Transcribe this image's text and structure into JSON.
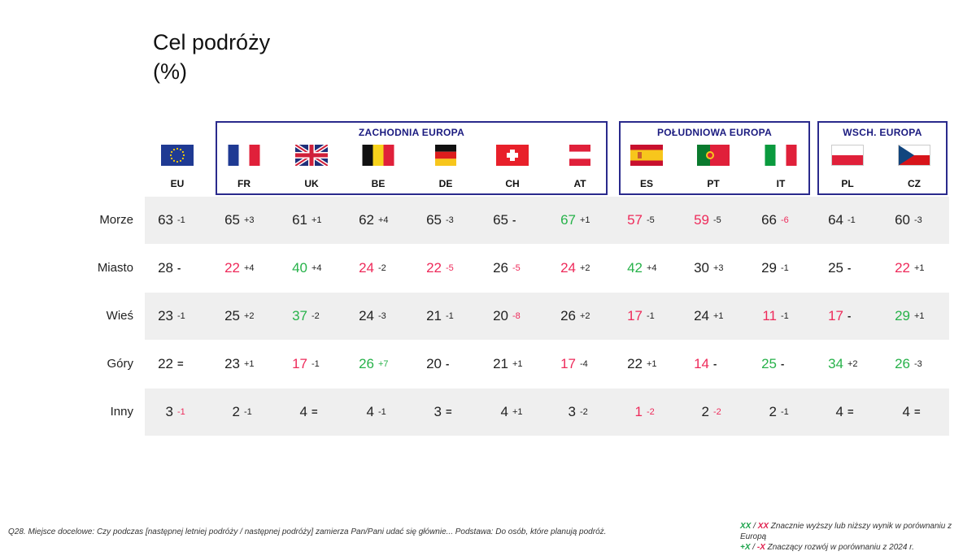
{
  "title": {
    "line1": "Cel podróży",
    "line2": "(%)"
  },
  "colors": {
    "green": "#27b24a",
    "red": "#ee2a5a",
    "neutral": "#222222",
    "box": "#2a2a8c"
  },
  "groups": [
    {
      "label": "ZACHODNIA EUROPA"
    },
    {
      "label": "POŁUDNIOWA EUROPA"
    },
    {
      "label": "WSCH. EUROPA"
    }
  ],
  "countries": [
    {
      "code": "EU",
      "flag": "eu-flag-icon"
    },
    {
      "code": "FR",
      "flag": "france-flag-icon"
    },
    {
      "code": "UK",
      "flag": "uk-flag-icon"
    },
    {
      "code": "BE",
      "flag": "belgium-flag-icon"
    },
    {
      "code": "DE",
      "flag": "germany-flag-icon"
    },
    {
      "code": "CH",
      "flag": "switzerland-flag-icon"
    },
    {
      "code": "AT",
      "flag": "austria-flag-icon"
    },
    {
      "code": "ES",
      "flag": "spain-flag-icon"
    },
    {
      "code": "PT",
      "flag": "portugal-flag-icon"
    },
    {
      "code": "IT",
      "flag": "italy-flag-icon"
    },
    {
      "code": "PL",
      "flag": "poland-flag-icon"
    },
    {
      "code": "CZ",
      "flag": "czechia-flag-icon"
    }
  ],
  "chart_data": {
    "type": "table",
    "columns": [
      "EU",
      "FR",
      "UK",
      "BE",
      "DE",
      "CH",
      "AT",
      "ES",
      "PT",
      "IT",
      "PL",
      "CZ"
    ],
    "rows": [
      {
        "label": "Morze",
        "cells": [
          {
            "value": "63",
            "delta": "-1"
          },
          {
            "value": "65",
            "delta": "+3"
          },
          {
            "value": "61",
            "delta": "+1"
          },
          {
            "value": "62",
            "delta": "+4"
          },
          {
            "value": "65",
            "delta": "-3"
          },
          {
            "value": "65",
            "delta": "-"
          },
          {
            "value": "67",
            "delta": "+1",
            "vcolor": "green"
          },
          {
            "value": "57",
            "delta": "-5",
            "vcolor": "red"
          },
          {
            "value": "59",
            "delta": "-5",
            "vcolor": "red"
          },
          {
            "value": "66",
            "delta": "-6",
            "dcolor": "red"
          },
          {
            "value": "64",
            "delta": "-1"
          },
          {
            "value": "60",
            "delta": "-3"
          }
        ]
      },
      {
        "label": "Miasto",
        "cells": [
          {
            "value": "28",
            "delta": "-"
          },
          {
            "value": "22",
            "delta": "+4",
            "vcolor": "red"
          },
          {
            "value": "40",
            "delta": "+4",
            "vcolor": "green"
          },
          {
            "value": "24",
            "delta": "-2",
            "vcolor": "red"
          },
          {
            "value": "22",
            "delta": "-5",
            "vcolor": "red",
            "dcolor": "red"
          },
          {
            "value": "26",
            "delta": "-5",
            "dcolor": "red"
          },
          {
            "value": "24",
            "delta": "+2",
            "vcolor": "red"
          },
          {
            "value": "42",
            "delta": "+4",
            "vcolor": "green"
          },
          {
            "value": "30",
            "delta": "+3"
          },
          {
            "value": "29",
            "delta": "-1"
          },
          {
            "value": "25",
            "delta": "-"
          },
          {
            "value": "22",
            "delta": "+1",
            "vcolor": "red"
          }
        ]
      },
      {
        "label": "Wieś",
        "cells": [
          {
            "value": "23",
            "delta": "-1"
          },
          {
            "value": "25",
            "delta": "+2"
          },
          {
            "value": "37",
            "delta": "-2",
            "vcolor": "green"
          },
          {
            "value": "24",
            "delta": "-3"
          },
          {
            "value": "21",
            "delta": "-1"
          },
          {
            "value": "20",
            "delta": "-8",
            "dcolor": "red"
          },
          {
            "value": "26",
            "delta": "+2"
          },
          {
            "value": "17",
            "delta": "-1",
            "vcolor": "red"
          },
          {
            "value": "24",
            "delta": "+1"
          },
          {
            "value": "11",
            "delta": "-1",
            "vcolor": "red"
          },
          {
            "value": "17",
            "delta": "-",
            "vcolor": "red"
          },
          {
            "value": "29",
            "delta": "+1",
            "vcolor": "green"
          }
        ]
      },
      {
        "label": "Góry",
        "cells": [
          {
            "value": "22",
            "delta": "="
          },
          {
            "value": "23",
            "delta": "+1"
          },
          {
            "value": "17",
            "delta": "-1",
            "vcolor": "red"
          },
          {
            "value": "26",
            "delta": "+7",
            "vcolor": "green",
            "dcolor": "green"
          },
          {
            "value": "20",
            "delta": "-"
          },
          {
            "value": "21",
            "delta": "+1"
          },
          {
            "value": "17",
            "delta": "-4",
            "vcolor": "red"
          },
          {
            "value": "22",
            "delta": "+1"
          },
          {
            "value": "14",
            "delta": "-",
            "vcolor": "red"
          },
          {
            "value": "25",
            "delta": "-",
            "vcolor": "green"
          },
          {
            "value": "34",
            "delta": "+2",
            "vcolor": "green"
          },
          {
            "value": "26",
            "delta": "-3",
            "vcolor": "green"
          }
        ]
      },
      {
        "label": "Inny",
        "cells": [
          {
            "value": "3",
            "delta": "-1",
            "dcolor": "red"
          },
          {
            "value": "2",
            "delta": "-1"
          },
          {
            "value": "4",
            "delta": "="
          },
          {
            "value": "4",
            "delta": "-1"
          },
          {
            "value": "3",
            "delta": "="
          },
          {
            "value": "4",
            "delta": "+1"
          },
          {
            "value": "3",
            "delta": "-2"
          },
          {
            "value": "1",
            "delta": "-2",
            "vcolor": "red",
            "dcolor": "red"
          },
          {
            "value": "2",
            "delta": "-2",
            "dcolor": "red"
          },
          {
            "value": "2",
            "delta": "-1"
          },
          {
            "value": "4",
            "delta": "="
          },
          {
            "value": "4",
            "delta": "="
          }
        ]
      }
    ]
  },
  "footnote": "Q28. Miejsce docelowe: Czy podczas [następnej letniej podróży / następnej podróży] zamierza Pan/Pani udać się głównie... Podstawa: Do osób, które planują podróż.",
  "legend": {
    "line1_green": "XX",
    "line1_sep": " / ",
    "line1_red": "XX",
    "line1_text": " Znacznie wyższy lub niższy wynik w porównaniu z Europą",
    "line2_green": "+X",
    "line2_sep": " / ",
    "line2_red": "-X",
    "line2_text": " Znaczący rozwój w porównaniu z 2024 r."
  }
}
